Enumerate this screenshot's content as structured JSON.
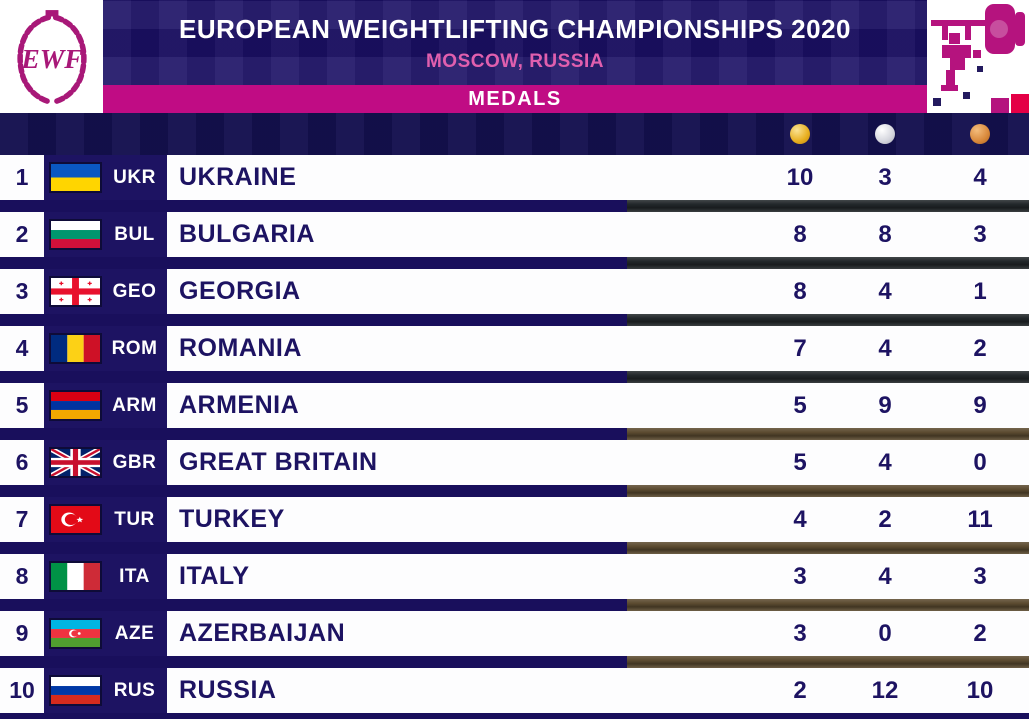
{
  "header": {
    "logo_text": "EWF",
    "title": "EUROPEAN WEIGHTLIFTING CHAMPIONSHIPS 2020",
    "subtitle": "MOSCOW, RUSSIA",
    "section_label": "MEDALS"
  },
  "legend": {
    "columns": [
      "gold",
      "silver",
      "bronze"
    ]
  },
  "colors": {
    "navy": "#1d1362",
    "magenta_strip": "#c00c84",
    "subtitle_pink": "#e05fae",
    "gold": "#e7ae1e",
    "silver": "#d4d5dd",
    "bronze": "#d8883a",
    "row_background": "#fdfdfe"
  },
  "chart_data": {
    "type": "table",
    "title": "European Weightlifting Championships 2020 — Moscow, Russia — Medals",
    "columns": [
      "rank",
      "code",
      "country",
      "gold",
      "silver",
      "bronze"
    ],
    "rows": [
      {
        "rank": "1",
        "code": "UKR",
        "country": "UKRAINE",
        "gold": "10",
        "silver": "3",
        "bronze": "4"
      },
      {
        "rank": "2",
        "code": "BUL",
        "country": "BULGARIA",
        "gold": "8",
        "silver": "8",
        "bronze": "3"
      },
      {
        "rank": "3",
        "code": "GEO",
        "country": "GEORGIA",
        "gold": "8",
        "silver": "4",
        "bronze": "1"
      },
      {
        "rank": "4",
        "code": "ROM",
        "country": "ROMANIA",
        "gold": "7",
        "silver": "4",
        "bronze": "2"
      },
      {
        "rank": "5",
        "code": "ARM",
        "country": "ARMENIA",
        "gold": "5",
        "silver": "9",
        "bronze": "9"
      },
      {
        "rank": "6",
        "code": "GBR",
        "country": "GREAT BRITAIN",
        "gold": "5",
        "silver": "4",
        "bronze": "0"
      },
      {
        "rank": "7",
        "code": "TUR",
        "country": "TURKEY",
        "gold": "4",
        "silver": "2",
        "bronze": "11"
      },
      {
        "rank": "8",
        "code": "ITA",
        "country": "ITALY",
        "gold": "3",
        "silver": "4",
        "bronze": "3"
      },
      {
        "rank": "9",
        "code": "AZE",
        "country": "AZERBAIJAN",
        "gold": "3",
        "silver": "0",
        "bronze": "2"
      },
      {
        "rank": "10",
        "code": "RUS",
        "country": "RUSSIA",
        "gold": "2",
        "silver": "12",
        "bronze": "10"
      }
    ]
  }
}
